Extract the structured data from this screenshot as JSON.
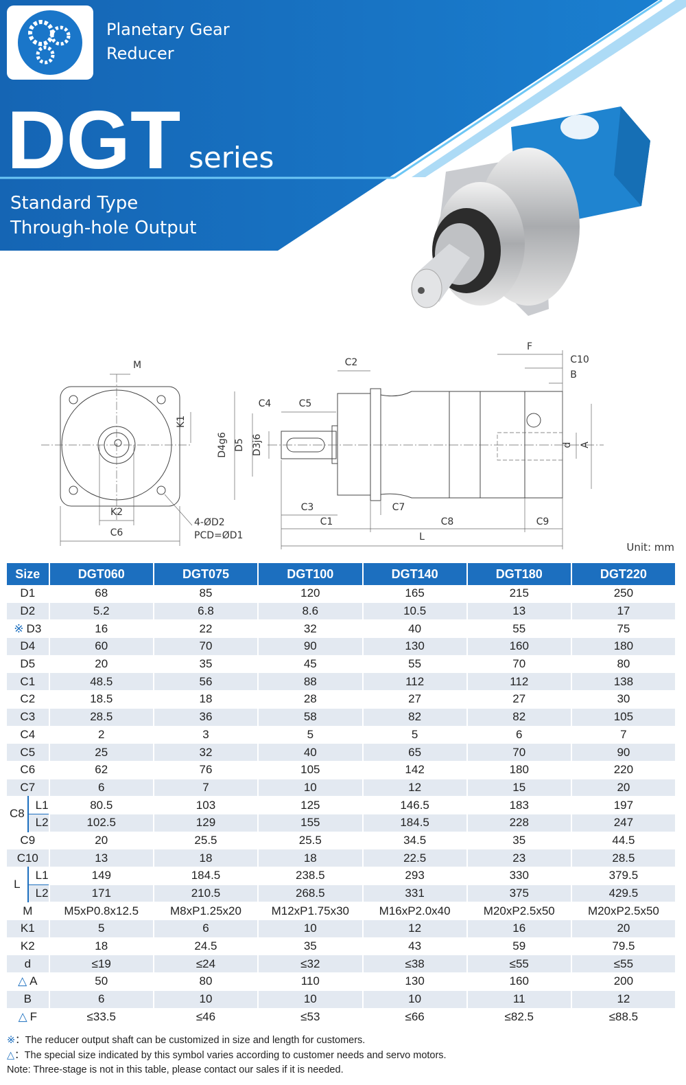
{
  "header": {
    "brand": [
      "Planetary Gear",
      "Reducer"
    ],
    "model": "DGT",
    "suffix": "series",
    "subtitle": [
      "Standard Type",
      "Through-hole Output"
    ]
  },
  "drawing": {
    "labels": [
      "M",
      "K1",
      "K2",
      "C6",
      "4-ØD2",
      "PCD=ØD1",
      "C2",
      "C4",
      "C5",
      "D4g6",
      "D5",
      "D3j6",
      "C3",
      "C1",
      "C7",
      "C8",
      "L",
      "F",
      "C10",
      "B",
      "d",
      "A",
      "C9"
    ],
    "unit": "Unit: mm"
  },
  "table": {
    "header": [
      "Size",
      "DGT060",
      "DGT075",
      "DGT100",
      "DGT140",
      "DGT180",
      "DGT220"
    ],
    "rows": [
      {
        "label": "D1",
        "values": [
          68,
          85,
          120,
          165,
          215,
          250
        ]
      },
      {
        "label": "D2",
        "values": [
          5.2,
          6.8,
          8.6,
          10.5,
          13,
          17
        ]
      },
      {
        "mark": "※",
        "label": "D3",
        "values": [
          16,
          22,
          32,
          40,
          55,
          75
        ]
      },
      {
        "label": "D4",
        "values": [
          60,
          70,
          90,
          130,
          160,
          180
        ]
      },
      {
        "label": "D5",
        "values": [
          20,
          35,
          45,
          55,
          70,
          80
        ]
      },
      {
        "label": "C1",
        "values": [
          48.5,
          56,
          88,
          112,
          112,
          138
        ]
      },
      {
        "label": "C2",
        "values": [
          18.5,
          18,
          28,
          27,
          27,
          30
        ]
      },
      {
        "label": "C3",
        "values": [
          28.5,
          36,
          58,
          82,
          82,
          105
        ]
      },
      {
        "label": "C4",
        "values": [
          2,
          3,
          5,
          5,
          6,
          7
        ]
      },
      {
        "label": "C5",
        "values": [
          25,
          32,
          40,
          65,
          70,
          90
        ]
      },
      {
        "label": "C6",
        "values": [
          62,
          76,
          105,
          142,
          180,
          220
        ]
      },
      {
        "label": "C7",
        "values": [
          6,
          7,
          10,
          12,
          15,
          20
        ]
      },
      {
        "label": "C8",
        "subrows": [
          {
            "label": "L1",
            "values": [
              80.5,
              103,
              125,
              146.5,
              183,
              197
            ]
          },
          {
            "label": "L2",
            "values": [
              102.5,
              129,
              155,
              184.5,
              228,
              247
            ]
          }
        ]
      },
      {
        "label": "C9",
        "values": [
          20,
          25.5,
          25.5,
          34.5,
          35,
          44.5
        ]
      },
      {
        "label": "C10",
        "values": [
          13,
          18,
          18,
          22.5,
          23,
          28.5
        ]
      },
      {
        "label": "L",
        "subrows": [
          {
            "label": "L1",
            "values": [
              149,
              184.5,
              238.5,
              293,
              330,
              379.5
            ]
          },
          {
            "label": "L2",
            "values": [
              171,
              210.5,
              268.5,
              331,
              375,
              429.5
            ]
          }
        ]
      },
      {
        "label": "M",
        "values": [
          "M5xP0.8x12.5",
          "M8xP1.25x20",
          "M12xP1.75x30",
          "M16xP2.0x40",
          "M20xP2.5x50",
          "M20xP2.5x50"
        ]
      },
      {
        "label": "K1",
        "values": [
          5,
          6,
          10,
          12,
          16,
          20
        ]
      },
      {
        "label": "K2",
        "values": [
          18,
          24.5,
          35,
          43,
          59,
          79.5
        ]
      },
      {
        "label": "d",
        "values": [
          "≤19",
          "≤24",
          "≤32",
          "≤38",
          "≤55",
          "≤55"
        ]
      },
      {
        "mark": "△",
        "label": "A",
        "values": [
          50,
          80,
          110,
          130,
          160,
          200
        ]
      },
      {
        "label": "B",
        "values": [
          6,
          10,
          10,
          10,
          11,
          12
        ]
      },
      {
        "mark": "△",
        "label": "F",
        "values": [
          "≤33.5",
          "≤46",
          "≤53",
          "≤66",
          "≤82.5",
          "≤88.5"
        ]
      }
    ]
  },
  "notes": [
    {
      "symbol": "※",
      "text": "：The reducer output shaft can be customized in size and length for customers."
    },
    {
      "symbol": "△",
      "text": "：The special size indicated by this symbol varies according to customer needs and servo motors."
    },
    {
      "text": "Note: Three-stage is not in this table, please contact our sales if it is needed."
    }
  ]
}
